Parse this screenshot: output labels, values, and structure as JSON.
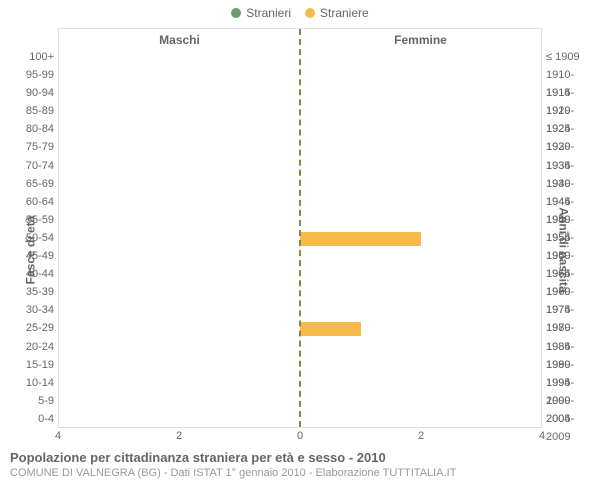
{
  "legend": {
    "items": [
      {
        "label": "Stranieri",
        "color": "#6b9b6b"
      },
      {
        "label": "Straniere",
        "color": "#f6b94a"
      }
    ]
  },
  "chart": {
    "type": "population-pyramid",
    "header_left": "Maschi",
    "header_right": "Femmine",
    "left_axis_title": "Fasce di età",
    "right_axis_title": "Anni di nascita",
    "background_color": "#ffffff",
    "border_color": "#e0e0e0",
    "center_line_color": "#888844",
    "male_color": "#6b9b6b",
    "female_color": "#f6b94a",
    "xlim": 4,
    "xticks_left": [
      4,
      2,
      0
    ],
    "xticks_right": [
      0,
      2,
      4
    ],
    "rows": [
      {
        "age": "100+",
        "birth": "≤ 1909",
        "m": 0,
        "f": 0
      },
      {
        "age": "95-99",
        "birth": "1910-1914",
        "m": 0,
        "f": 0
      },
      {
        "age": "90-94",
        "birth": "1915-1919",
        "m": 0,
        "f": 0
      },
      {
        "age": "85-89",
        "birth": "1920-1924",
        "m": 0,
        "f": 0
      },
      {
        "age": "80-84",
        "birth": "1925-1929",
        "m": 0,
        "f": 0
      },
      {
        "age": "75-79",
        "birth": "1930-1934",
        "m": 0,
        "f": 0
      },
      {
        "age": "70-74",
        "birth": "1935-1939",
        "m": 0,
        "f": 0
      },
      {
        "age": "65-69",
        "birth": "1940-1944",
        "m": 0,
        "f": 0
      },
      {
        "age": "60-64",
        "birth": "1945-1949",
        "m": 0,
        "f": 0
      },
      {
        "age": "55-59",
        "birth": "1950-1954",
        "m": 0,
        "f": 0
      },
      {
        "age": "50-54",
        "birth": "1955-1959",
        "m": 0,
        "f": 2
      },
      {
        "age": "45-49",
        "birth": "1960-1964",
        "m": 0,
        "f": 0
      },
      {
        "age": "40-44",
        "birth": "1965-1969",
        "m": 0,
        "f": 0
      },
      {
        "age": "35-39",
        "birth": "1970-1974",
        "m": 0,
        "f": 0
      },
      {
        "age": "30-34",
        "birth": "1975-1979",
        "m": 0,
        "f": 0
      },
      {
        "age": "25-29",
        "birth": "1980-1984",
        "m": 0,
        "f": 1
      },
      {
        "age": "20-24",
        "birth": "1985-1989",
        "m": 0,
        "f": 0
      },
      {
        "age": "15-19",
        "birth": "1990-1994",
        "m": 0,
        "f": 0
      },
      {
        "age": "10-14",
        "birth": "1995-1999",
        "m": 0,
        "f": 0
      },
      {
        "age": "5-9",
        "birth": "2000-2004",
        "m": 0,
        "f": 0
      },
      {
        "age": "0-4",
        "birth": "2005-2009",
        "m": 0,
        "f": 0
      }
    ],
    "label_fontsize": 11,
    "header_fontsize": 12
  },
  "title": {
    "main": "Popolazione per cittadinanza straniera per età e sesso - 2010",
    "sub": "COMUNE DI VALNEGRA (BG) - Dati ISTAT 1° gennaio 2010 - Elaborazione TUTTITALIA.IT"
  }
}
